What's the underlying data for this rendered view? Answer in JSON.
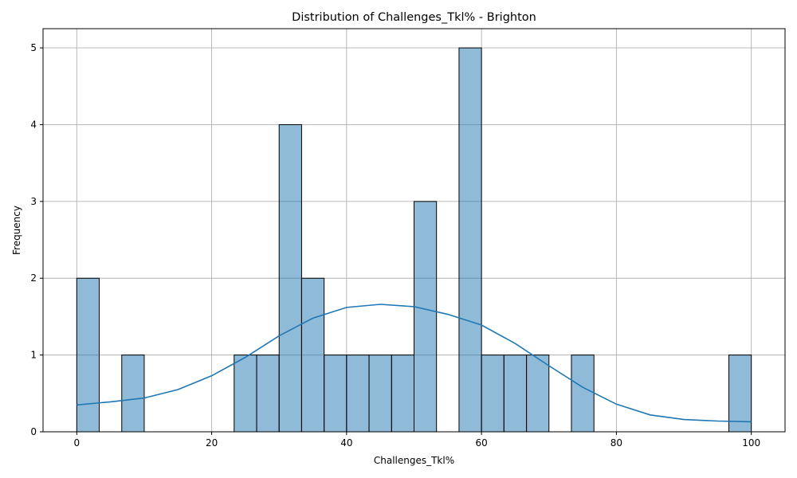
{
  "chart_data": {
    "type": "bar",
    "title": "Distribution of Challenges_Tkl% - Brighton",
    "xlabel": "Challenges_Tkl%",
    "ylabel": "Frequency",
    "xlim": [
      -5,
      105
    ],
    "ylim": [
      0,
      5.25
    ],
    "xticks": [
      0,
      20,
      40,
      60,
      80,
      100
    ],
    "yticks": [
      0,
      1,
      2,
      3,
      4,
      5
    ],
    "grid": true,
    "bin_edges": [
      0,
      3.33,
      6.67,
      10,
      13.33,
      16.67,
      20,
      23.33,
      26.67,
      30,
      33.33,
      36.67,
      40,
      43.33,
      46.67,
      50,
      53.33,
      56.67,
      60,
      63.33,
      66.67,
      70,
      73.33,
      76.67,
      80,
      83.33,
      86.67,
      90,
      93.33,
      96.67,
      100
    ],
    "counts": [
      2,
      0,
      1,
      0,
      0,
      0,
      0,
      1,
      1,
      4,
      2,
      1,
      1,
      1,
      1,
      3,
      0,
      5,
      1,
      1,
      1,
      0,
      1,
      0,
      0,
      0,
      0,
      0,
      0,
      1
    ],
    "kde": {
      "x": [
        0,
        5,
        10,
        15,
        20,
        25,
        30,
        35,
        40,
        45,
        50,
        55,
        60,
        65,
        70,
        75,
        80,
        85,
        90,
        95,
        100
      ],
      "y": [
        0.35,
        0.39,
        0.44,
        0.55,
        0.73,
        0.97,
        1.25,
        1.48,
        1.62,
        1.66,
        1.63,
        1.53,
        1.39,
        1.15,
        0.86,
        0.58,
        0.36,
        0.22,
        0.16,
        0.14,
        0.13
      ]
    }
  }
}
